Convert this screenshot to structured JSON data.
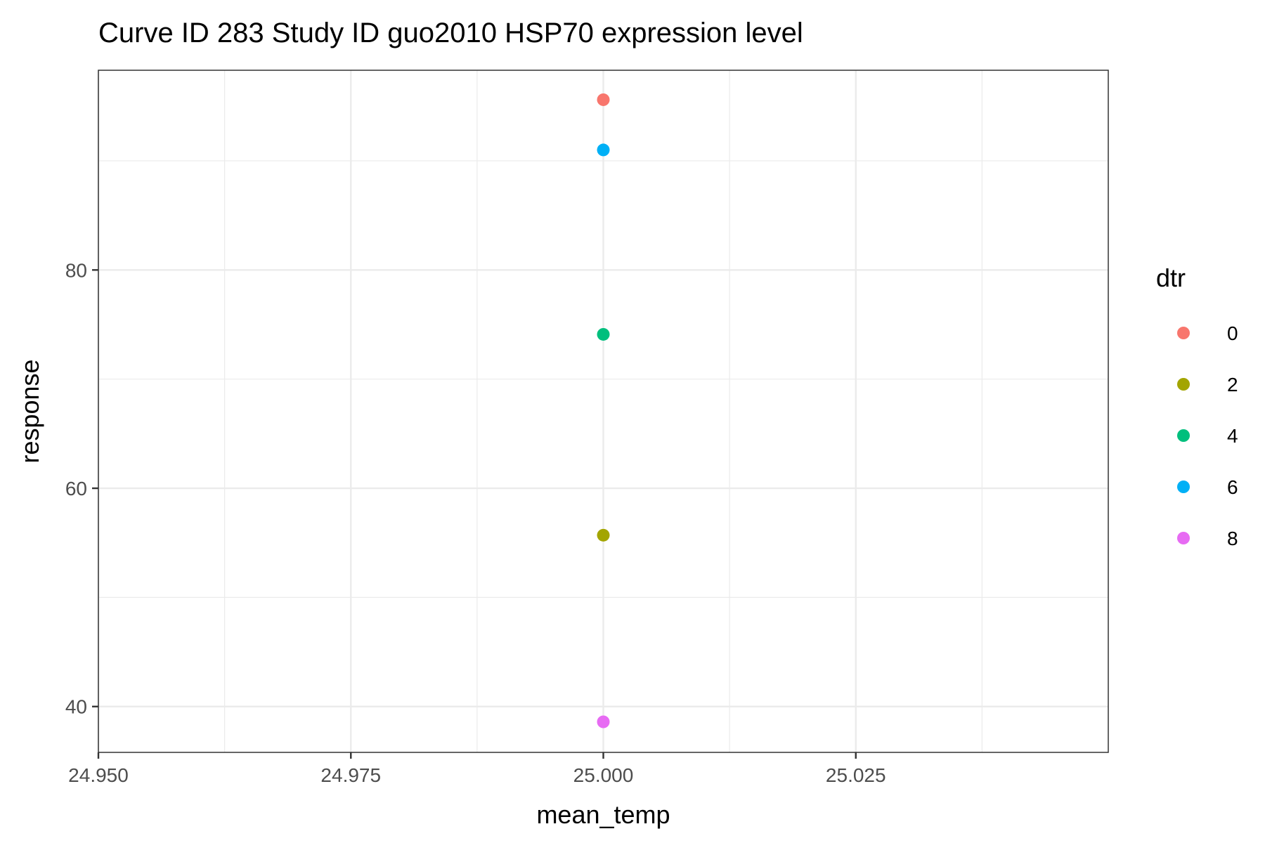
{
  "chart_data": {
    "type": "scatter",
    "title": "Curve ID 283 Study ID guo2010 HSP70 expression level",
    "xlabel": "mean_temp",
    "ylabel": "response",
    "xlim": [
      24.95,
      25.05
    ],
    "ylim": [
      35.8,
      98.3
    ],
    "x_ticks": [
      24.95,
      24.975,
      25.0,
      25.025
    ],
    "x_tick_labels": [
      "24.950",
      "24.975",
      "25.000",
      "25.025"
    ],
    "x_minor_ticks": [
      24.9625,
      24.9875,
      25.0125,
      25.0375
    ],
    "y_ticks": [
      40,
      60,
      80
    ],
    "y_tick_labels": [
      "40",
      "60",
      "80"
    ],
    "y_minor_ticks": [
      50,
      70,
      90
    ],
    "grid": true,
    "legend": {
      "title": "dtr",
      "position": "right",
      "entries": [
        {
          "label": "0",
          "color": "#F8766D"
        },
        {
          "label": "2",
          "color": "#A3A500"
        },
        {
          "label": "4",
          "color": "#00BF7D"
        },
        {
          "label": "6",
          "color": "#00B0F6"
        },
        {
          "label": "8",
          "color": "#E76BF3"
        }
      ]
    },
    "series": [
      {
        "name": "0",
        "color": "#F8766D",
        "points": [
          {
            "x": 25.0,
            "y": 95.6
          }
        ]
      },
      {
        "name": "2",
        "color": "#A3A500",
        "points": [
          {
            "x": 25.0,
            "y": 55.7
          }
        ]
      },
      {
        "name": "4",
        "color": "#00BF7D",
        "points": [
          {
            "x": 25.0,
            "y": 74.1
          }
        ]
      },
      {
        "name": "6",
        "color": "#00B0F6",
        "points": [
          {
            "x": 25.0,
            "y": 91.0
          }
        ]
      },
      {
        "name": "8",
        "color": "#E76BF3",
        "points": [
          {
            "x": 25.0,
            "y": 38.6
          }
        ]
      }
    ]
  }
}
